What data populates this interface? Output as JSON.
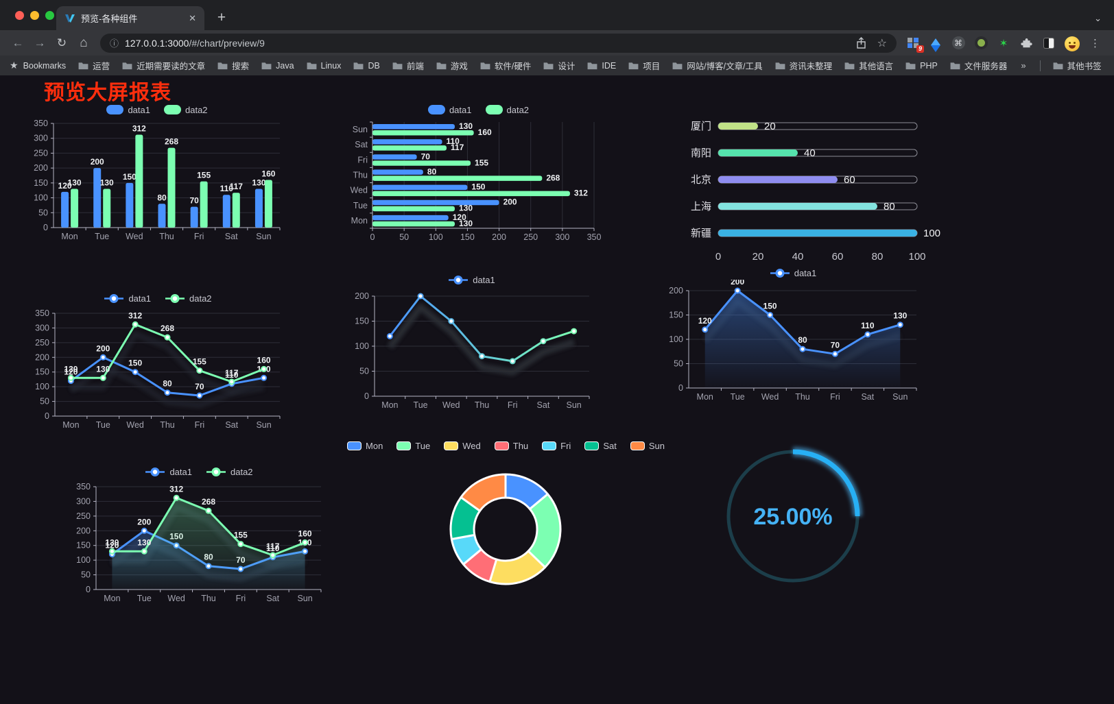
{
  "browser": {
    "tab_title": "预览-各种组件",
    "url_host": "127.0.0.1:3000",
    "url_path": "/#/chart/preview/9",
    "new_tab_label": "+",
    "tab_close_label": "✕",
    "extension_badge": "9",
    "bookmarks_label": "Bookmarks",
    "bookmarks": [
      "运营",
      "近期需要读的文章",
      "搜索",
      "Java",
      "Linux",
      "DB",
      "前端",
      "游戏",
      "软件/硬件",
      "设计",
      "IDE",
      "项目",
      "网站/博客/文章/工具",
      "资讯未整理",
      "其他语言",
      "PHP",
      "文件服务器"
    ],
    "bookmarks_overflow": "»",
    "other_bookmarks": "其他书签"
  },
  "page": {
    "title": "预览大屏报表",
    "title_color": "#ff2e0d",
    "background": "#131118"
  },
  "palette": {
    "blue": "#4992ff",
    "green": "#7cffb2",
    "yellow": "#fddd60",
    "red": "#ff6e76",
    "cyan": "#58d9f9",
    "teal": "#05c091",
    "orange": "#ff8a45",
    "axis_text": "#a3a3af",
    "axis_line": "#b6b5c5",
    "grid_line": "#2e2e38",
    "value_label": "#eef0f2"
  },
  "chart_data": [
    {
      "id": "bar-grouped",
      "type": "bar",
      "categories": [
        "Mon",
        "Tue",
        "Wed",
        "Thu",
        "Fri",
        "Sat",
        "Sun"
      ],
      "series": [
        {
          "name": "data1",
          "color": "#4992ff",
          "values": [
            120,
            200,
            150,
            80,
            70,
            110,
            130
          ]
        },
        {
          "name": "data2",
          "color": "#7cffb2",
          "values": [
            130,
            130,
            312,
            268,
            155,
            117,
            160
          ]
        }
      ],
      "ylim": [
        0,
        350
      ],
      "ystep": 50,
      "legend_position": "top",
      "grid": true,
      "labels": true
    },
    {
      "id": "bar-horizontal",
      "type": "bar",
      "orientation": "horizontal",
      "categories_top_to_bottom": [
        "Sun",
        "Sat",
        "Fri",
        "Thu",
        "Wed",
        "Tue",
        "Mon"
      ],
      "series": [
        {
          "name": "data1",
          "color": "#4992ff",
          "values": [
            130,
            110,
            70,
            80,
            150,
            200,
            120
          ]
        },
        {
          "name": "data2",
          "color": "#7cffb2",
          "values": [
            160,
            117,
            155,
            268,
            312,
            130,
            130
          ]
        }
      ],
      "xlim": [
        0,
        350
      ],
      "xstep": 50,
      "legend_position": "top",
      "grid": true,
      "labels": true
    },
    {
      "id": "progress-bars",
      "type": "bar",
      "orientation": "horizontal",
      "items": [
        {
          "label": "厦门",
          "value": 20,
          "color": "#c1e287"
        },
        {
          "label": "南阳",
          "value": 40,
          "color": "#55e3ad"
        },
        {
          "label": "北京",
          "value": 60,
          "color": "#8f8df0"
        },
        {
          "label": "上海",
          "value": 80,
          "color": "#83e3df"
        },
        {
          "label": "新疆",
          "value": 100,
          "color": "#3ab2e4"
        }
      ],
      "xlim": [
        0,
        100
      ],
      "xticks": [
        0,
        20,
        40,
        60,
        80,
        100
      ]
    },
    {
      "id": "line-two-series",
      "type": "line",
      "categories": [
        "Mon",
        "Tue",
        "Wed",
        "Thu",
        "Fri",
        "Sat",
        "Sun"
      ],
      "series": [
        {
          "name": "data1",
          "color": "#4992ff",
          "values": [
            120,
            200,
            150,
            80,
            70,
            110,
            130
          ]
        },
        {
          "name": "data2",
          "color": "#7cffb2",
          "values": [
            130,
            130,
            312,
            268,
            155,
            117,
            160
          ]
        }
      ],
      "ylim": [
        0,
        350
      ],
      "ystep": 50,
      "legend_position": "top",
      "labels": true
    },
    {
      "id": "line-gradient",
      "type": "line",
      "categories": [
        "Mon",
        "Tue",
        "Wed",
        "Thu",
        "Fri",
        "Sat",
        "Sun"
      ],
      "series": [
        {
          "name": "data1",
          "gradient": [
            "#4992ff",
            "#7cffb2"
          ],
          "values": [
            120,
            200,
            150,
            80,
            70,
            110,
            130
          ]
        }
      ],
      "ylim": [
        0,
        200
      ],
      "ystep": 50,
      "legend_position": "top",
      "labels": false
    },
    {
      "id": "area-single",
      "type": "area",
      "categories": [
        "Mon",
        "Tue",
        "Wed",
        "Thu",
        "Fri",
        "Sat",
        "Sun"
      ],
      "series": [
        {
          "name": "data1",
          "color": "#4992ff",
          "values": [
            120,
            200,
            150,
            80,
            70,
            110,
            130
          ]
        }
      ],
      "ylim": [
        0,
        200
      ],
      "ystep": 50,
      "legend_position": "top",
      "labels": true
    },
    {
      "id": "area-two-series",
      "type": "area",
      "categories": [
        "Mon",
        "Tue",
        "Wed",
        "Thu",
        "Fri",
        "Sat",
        "Sun"
      ],
      "series": [
        {
          "name": "data1",
          "color": "#4992ff",
          "values": [
            120,
            200,
            150,
            80,
            70,
            110,
            130
          ]
        },
        {
          "name": "data2",
          "color": "#7cffb2",
          "values": [
            130,
            130,
            312,
            268,
            155,
            117,
            160
          ]
        }
      ],
      "ylim": [
        0,
        350
      ],
      "ystep": 50,
      "legend_position": "top",
      "labels": true
    },
    {
      "id": "donut",
      "type": "pie",
      "categories": [
        "Mon",
        "Tue",
        "Wed",
        "Thu",
        "Fri",
        "Sat",
        "Sun"
      ],
      "values": [
        120,
        200,
        150,
        80,
        70,
        110,
        130
      ],
      "colors": [
        "#4992ff",
        "#7cffb2",
        "#fddd60",
        "#ff6e76",
        "#58d9f9",
        "#05c091",
        "#ff8a45"
      ],
      "inner_radius_ratio": 0.58,
      "legend_position": "top"
    },
    {
      "id": "gauge",
      "type": "gauge",
      "value": 25,
      "display": "25.00%",
      "color": "#27b0f5",
      "track_color": "#1c3e4a",
      "text_color": "#45b2f5"
    }
  ]
}
